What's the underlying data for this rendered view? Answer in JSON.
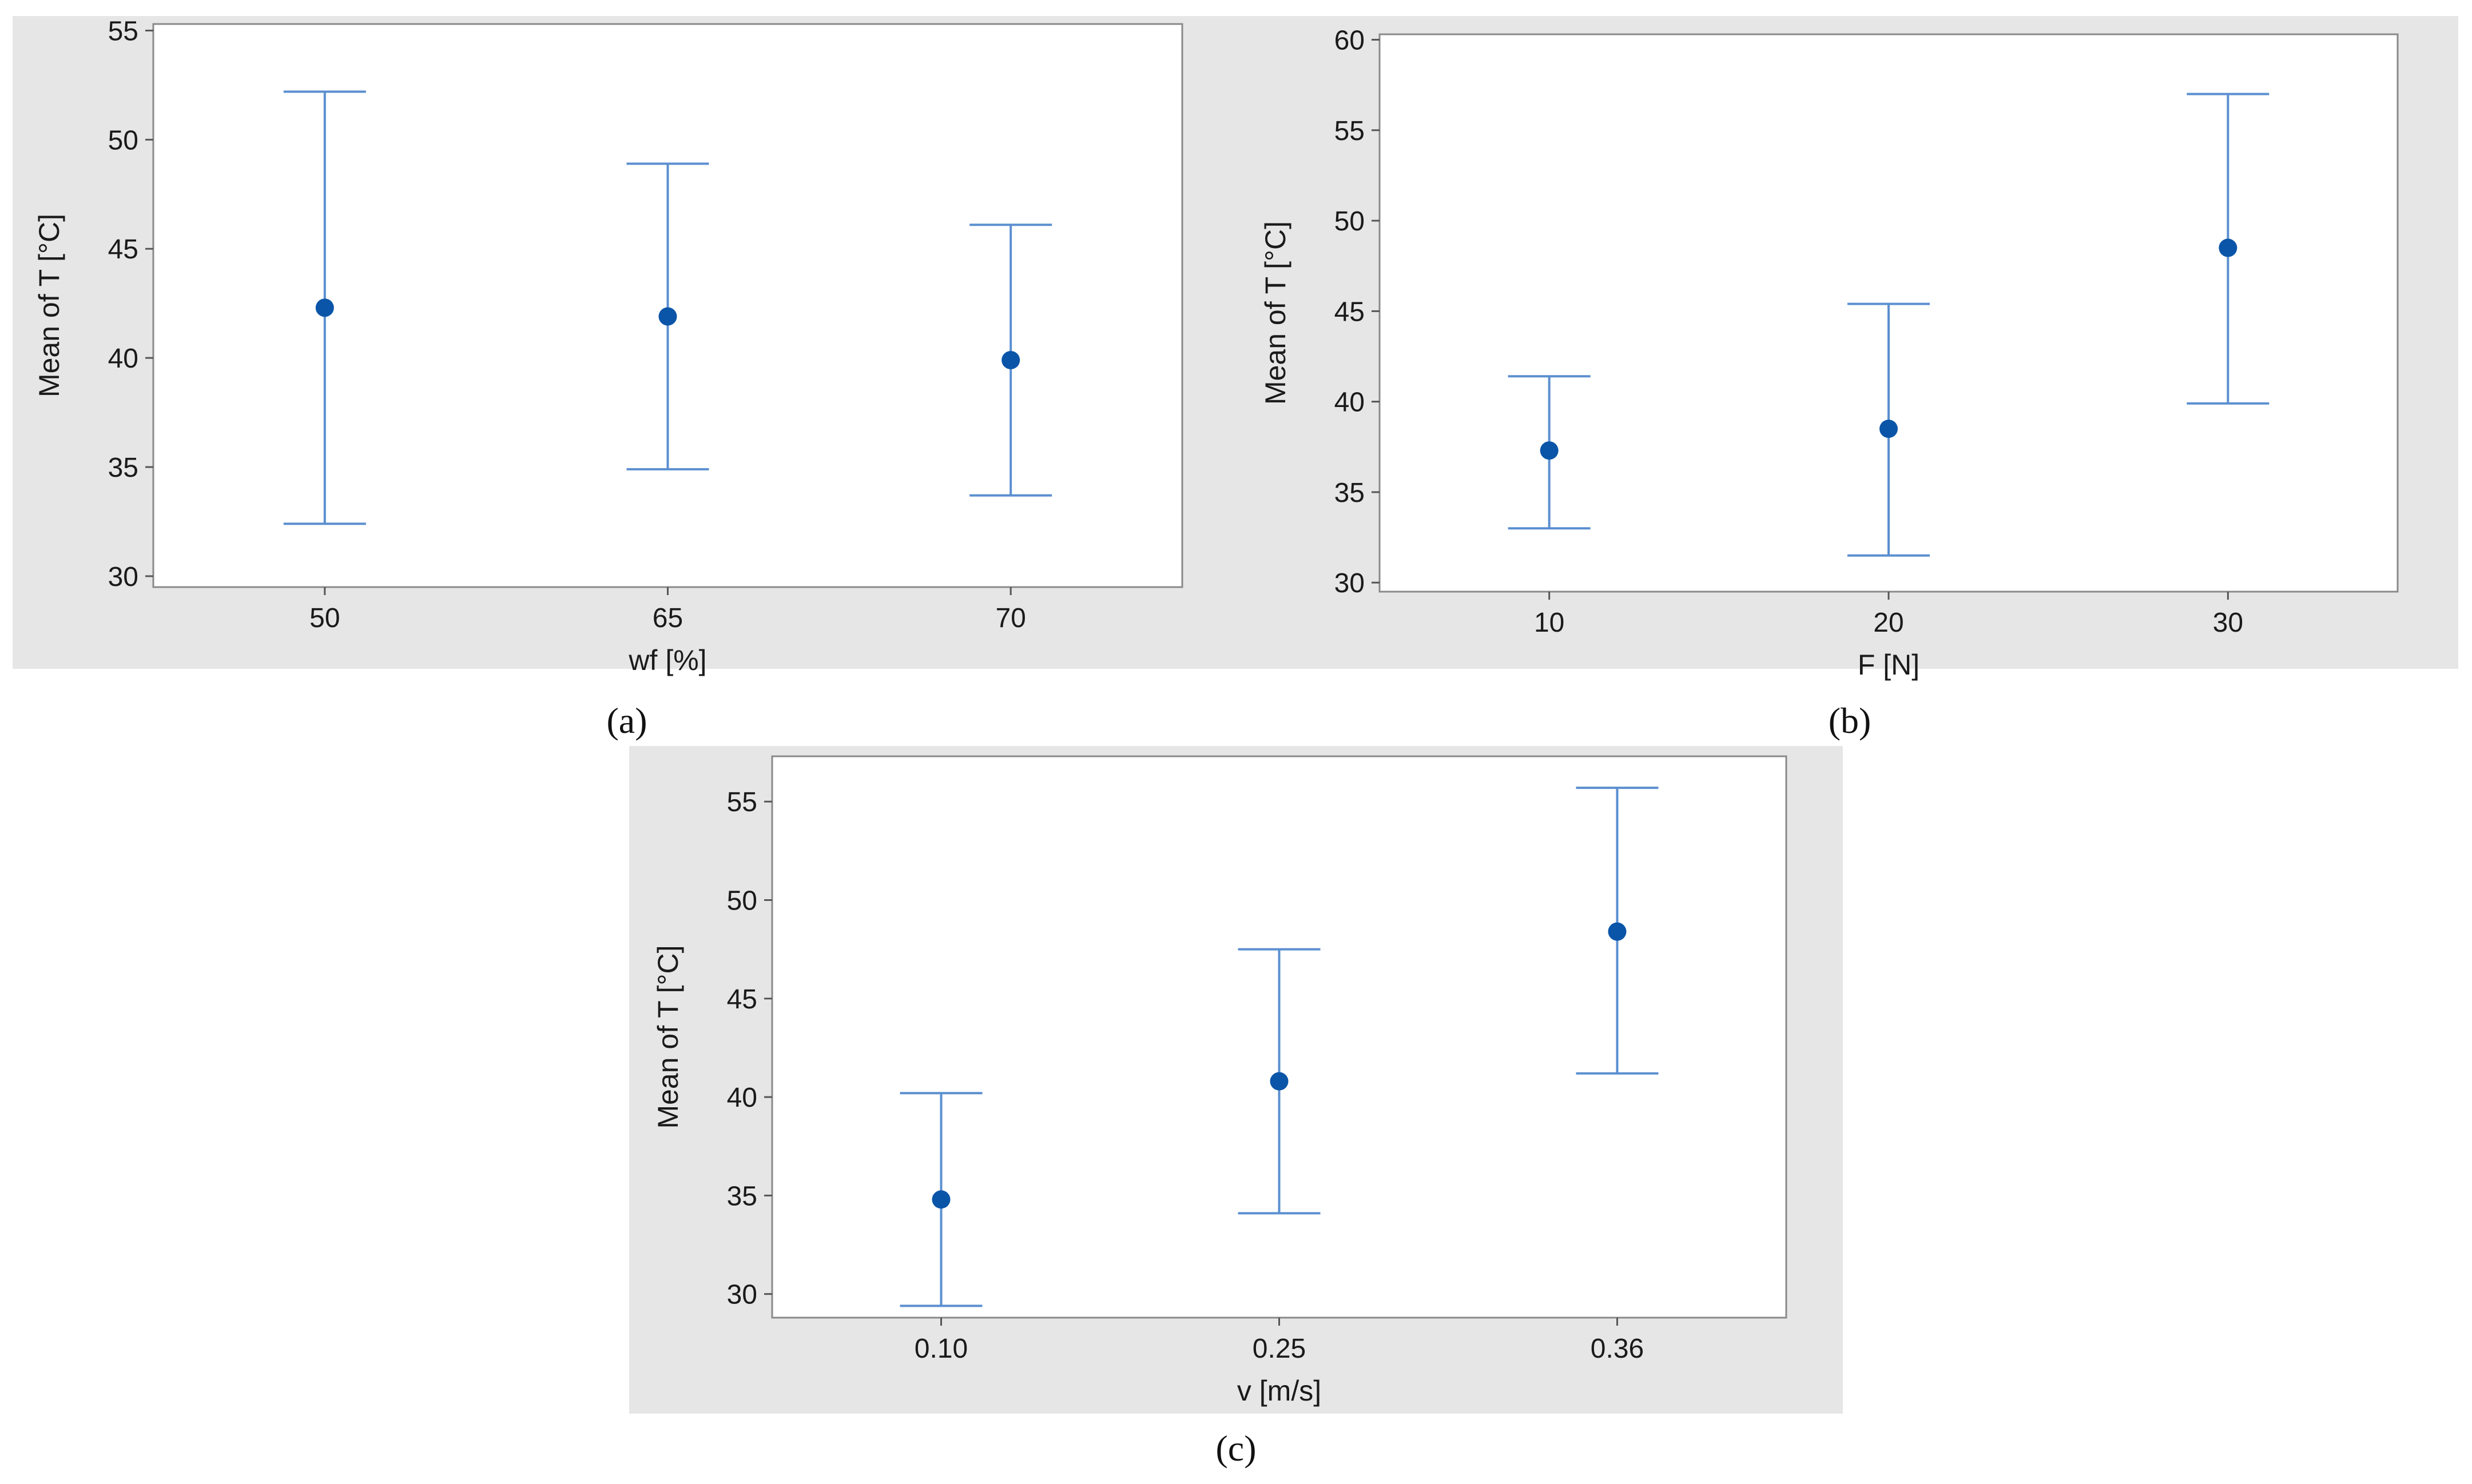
{
  "colors": {
    "panel_bg": "#e6e6e6",
    "plot_bg": "#ffffff",
    "errorbar": "#5b8fd0",
    "mean": "#0a55a8"
  },
  "chart_data": [
    {
      "type": "errorbar",
      "caption": "(a)",
      "caption_letter": "a",
      "xlabel": "wf [%]",
      "ylabel": "Mean of T  [°C]",
      "categories": [
        "50",
        "65",
        "70"
      ],
      "mean": [
        42.3,
        41.9,
        39.9
      ],
      "lower": [
        32.4,
        34.9,
        33.7
      ],
      "upper": [
        52.2,
        48.9,
        46.1
      ],
      "ylim": [
        29.5,
        55.3
      ],
      "yticks": [
        30,
        35,
        40,
        45,
        50,
        55
      ],
      "grid": false
    },
    {
      "type": "errorbar",
      "caption": "(b)",
      "caption_letter": "b",
      "xlabel": "F [N]",
      "ylabel": "Mean of T  [°C]",
      "categories": [
        "10",
        "20",
        "30"
      ],
      "mean": [
        37.3,
        38.5,
        48.5
      ],
      "lower": [
        33.0,
        31.5,
        39.9
      ],
      "upper": [
        41.4,
        45.4,
        57.0
      ],
      "ylim": [
        29.5,
        60.3
      ],
      "yticks": [
        30,
        35,
        40,
        45,
        50,
        55,
        60
      ],
      "grid": false
    },
    {
      "type": "errorbar",
      "caption": "(c)",
      "caption_letter": "c",
      "xlabel": "v [m/s]",
      "ylabel": "Mean of T  [°C]",
      "categories": [
        "0.10",
        "0.25",
        "0.36"
      ],
      "mean": [
        34.8,
        40.8,
        48.4
      ],
      "lower": [
        29.4,
        34.1,
        41.2
      ],
      "upper": [
        40.2,
        47.5,
        55.7
      ],
      "ylim": [
        28.8,
        57.3
      ],
      "yticks": [
        30,
        35,
        40,
        45,
        50,
        55
      ],
      "grid": false
    }
  ]
}
